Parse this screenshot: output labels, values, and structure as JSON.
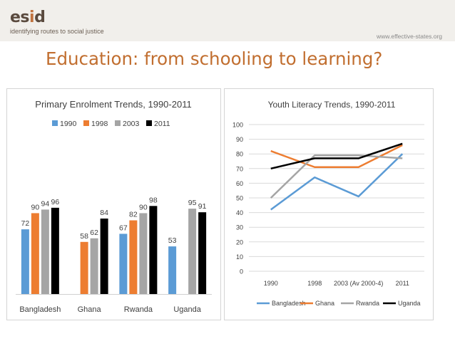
{
  "header": {
    "logo_prefix": "es",
    "logo_accent": "i",
    "logo_suffix": "d",
    "tagline": "identifying routes to social justice",
    "website": "www.effective-states.org"
  },
  "slide_title": "Education: from schooling to learning?",
  "colors": {
    "title": "#c16e2f",
    "header_band": "#f1efeb",
    "series_1990": "#5b9bd5",
    "series_1998": "#ed7d31",
    "series_2003": "#a5a5a5",
    "series_2011": "#000000"
  },
  "chart_data": [
    {
      "type": "bar",
      "title": "Primary Enrolment Trends, 1990-2011",
      "categories": [
        "Bangladesh",
        "Ghana",
        "Rwanda",
        "Uganda"
      ],
      "series": [
        {
          "name": "1990",
          "color": "#5b9bd5",
          "values": [
            72,
            null,
            67,
            53
          ]
        },
        {
          "name": "1998",
          "color": "#ed7d31",
          "values": [
            90,
            58,
            82,
            null
          ]
        },
        {
          "name": "2003",
          "color": "#a5a5a5",
          "values": [
            94,
            62,
            90,
            95
          ]
        },
        {
          "name": "2011",
          "color": "#000000",
          "values": [
            96,
            84,
            98,
            91
          ]
        }
      ],
      "ylim": [
        0,
        110
      ],
      "legend": "top",
      "grid": false,
      "data_labels": true
    },
    {
      "type": "line",
      "title": "Youth Literacy Trends, 1990-2011",
      "categories": [
        "1990",
        "1998",
        "2003 (Av 2000-4)",
        "2011"
      ],
      "series": [
        {
          "name": "Bangladesh",
          "color": "#5b9bd5",
          "values": [
            42,
            64,
            51,
            80
          ]
        },
        {
          "name": "Ghana",
          "color": "#ed7d31",
          "values": [
            82,
            71,
            71,
            86
          ]
        },
        {
          "name": "Rwanda",
          "color": "#a5a5a5",
          "values": [
            50,
            79,
            79,
            77
          ]
        },
        {
          "name": "Uganda",
          "color": "#000000",
          "values": [
            70,
            77,
            77,
            87
          ]
        }
      ],
      "ylim": [
        0,
        100
      ],
      "yticks": [
        0,
        10,
        20,
        30,
        40,
        50,
        60,
        70,
        80,
        90,
        100
      ],
      "legend": "bottom",
      "grid": true
    }
  ]
}
